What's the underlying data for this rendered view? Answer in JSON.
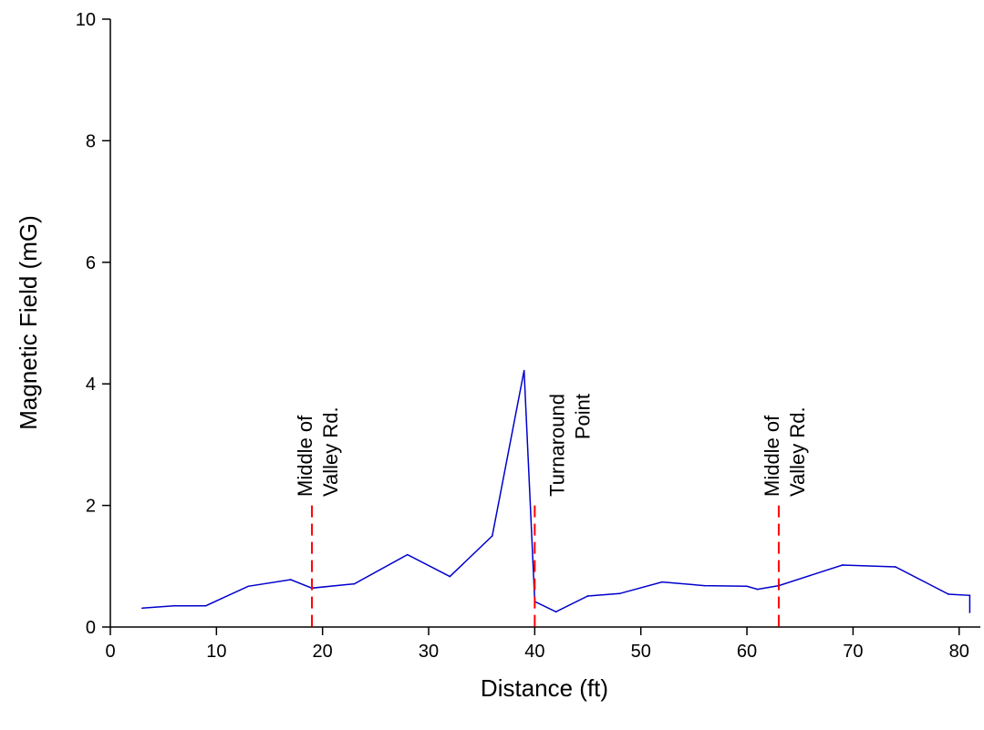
{
  "chart_data": {
    "type": "line",
    "xlabel": "Distance (ft)",
    "ylabel": "Magnetic Field (mG)",
    "xlim": [
      0,
      82
    ],
    "ylim": [
      0,
      10
    ],
    "xticks": [
      0,
      10,
      20,
      30,
      40,
      50,
      60,
      70,
      80
    ],
    "yticks": [
      0,
      2,
      4,
      6,
      8,
      10
    ],
    "grid": false,
    "series": [
      {
        "color": "#0000cc",
        "x": [
          3,
          6,
          9,
          13,
          17,
          19,
          23,
          28,
          32,
          36,
          39,
          40,
          42,
          45,
          48,
          52,
          56,
          60,
          61,
          63,
          69,
          74,
          79,
          81,
          81
        ],
        "y": [
          0.31,
          0.35,
          0.35,
          0.67,
          0.78,
          0.64,
          0.71,
          1.19,
          0.83,
          1.5,
          4.22,
          0.42,
          0.25,
          0.51,
          0.55,
          0.74,
          0.68,
          0.67,
          0.62,
          0.68,
          1.02,
          0.99,
          0.54,
          0.52,
          0.24
        ]
      }
    ],
    "markers": [
      {
        "x": 19,
        "y_top": 2.0,
        "color": "#ff0000",
        "lines": [
          "Middle of",
          "Valley Rd."
        ]
      },
      {
        "x": 40,
        "y_top": 2.0,
        "color": "#ff0000",
        "lines": [
          "Turnaround",
          "Point"
        ]
      },
      {
        "x": 63,
        "y_top": 2.0,
        "color": "#ff0000",
        "lines": [
          "Middle of",
          "Valley Rd."
        ]
      }
    ]
  }
}
